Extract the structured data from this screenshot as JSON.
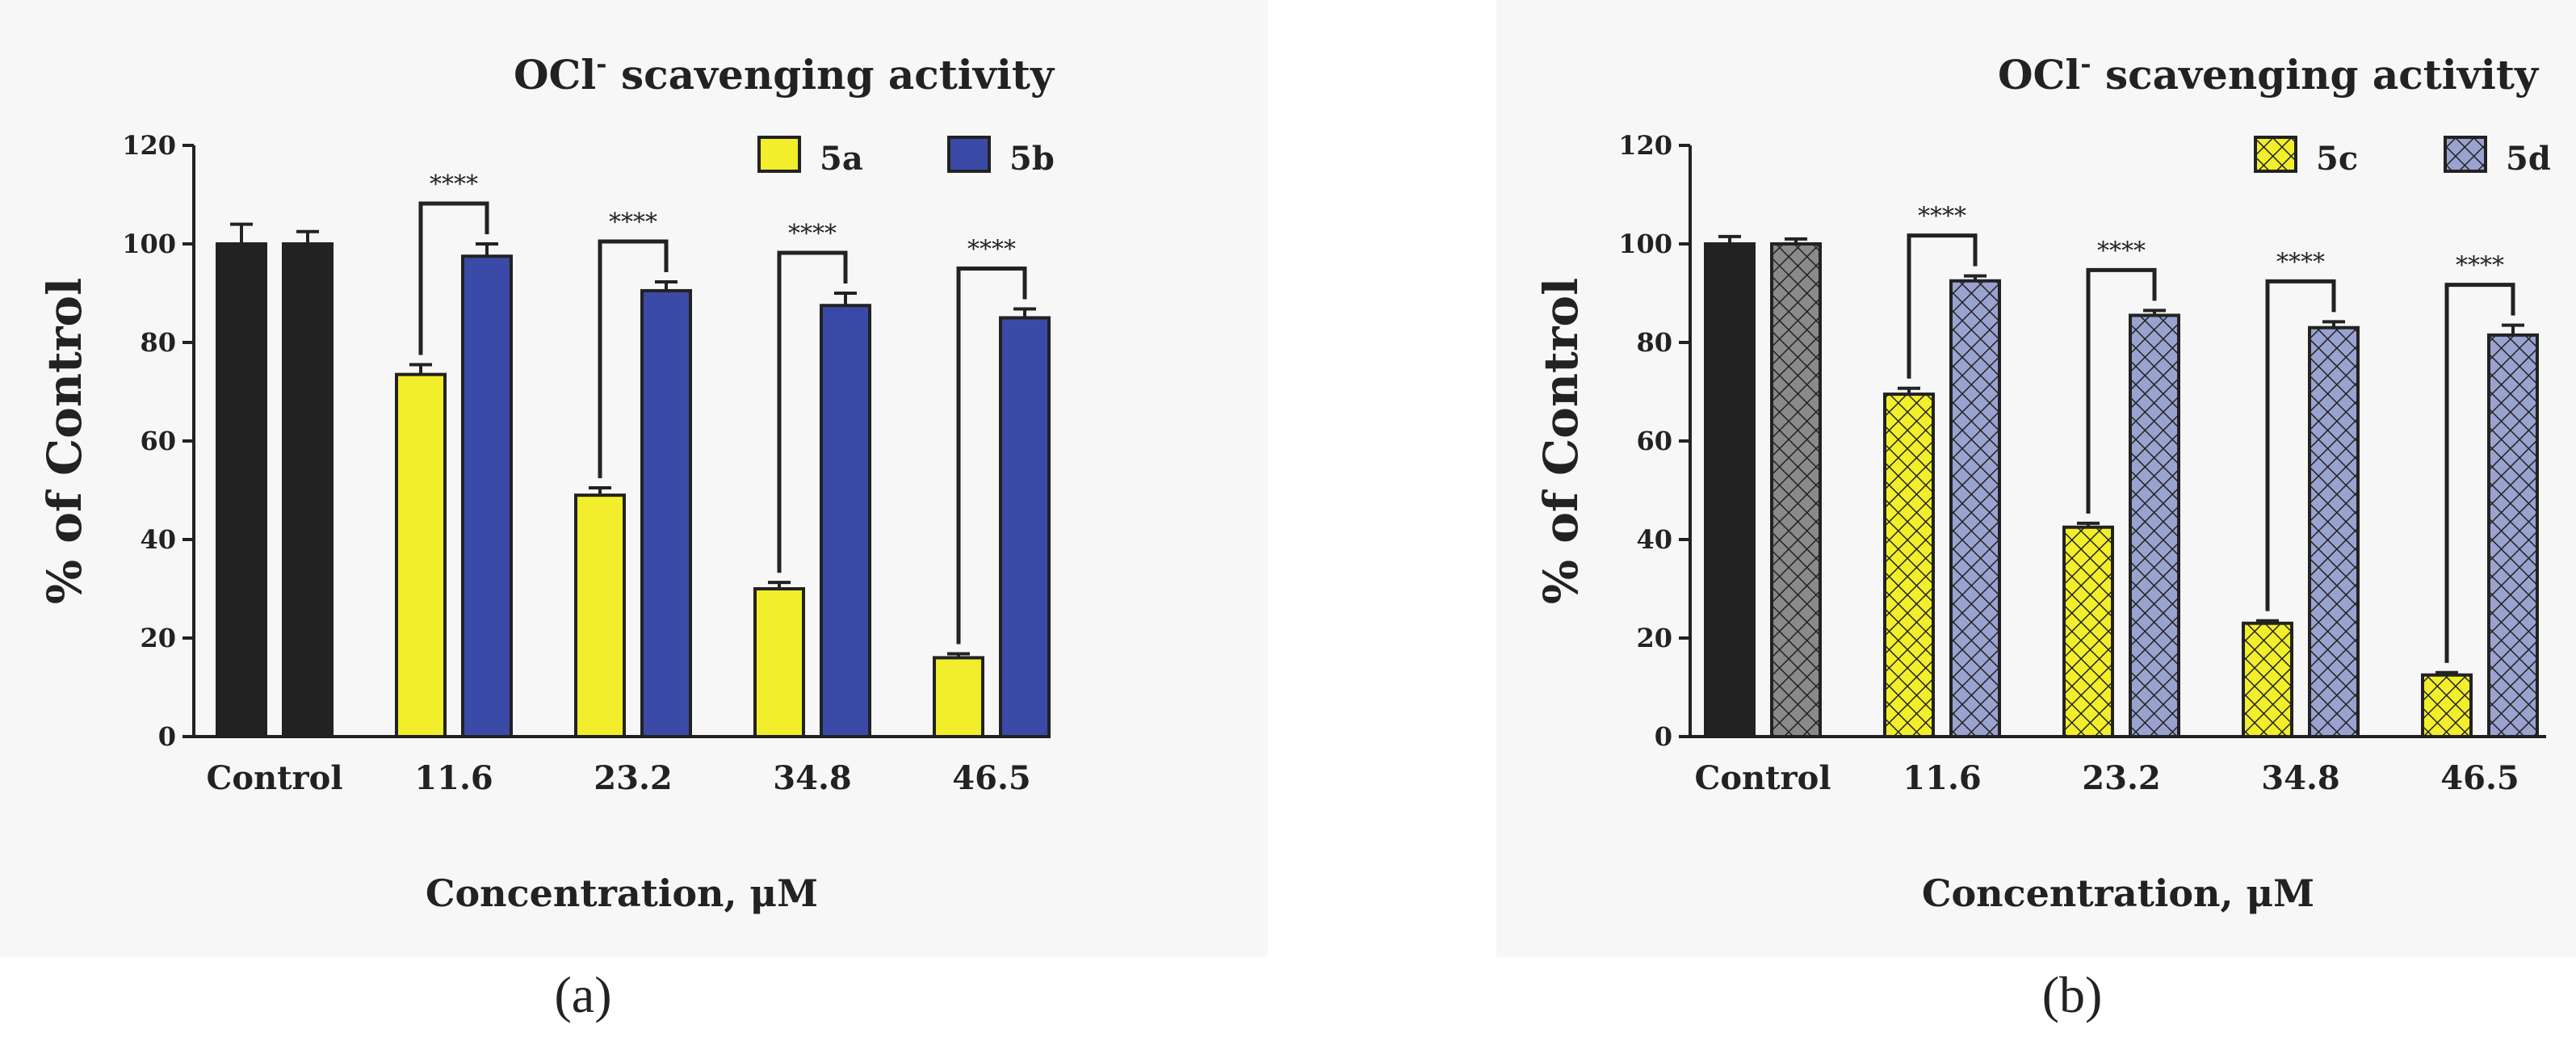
{
  "chart_data": [
    {
      "type": "bar",
      "panel_label": "(a)",
      "title": "OCl",
      "title_superscript": "-",
      "title_rest": " scavenging activity",
      "xlabel": "Concentration, μM",
      "ylabel": "% of Control",
      "ylim": [
        0,
        120
      ],
      "yticks": [
        0,
        20,
        40,
        60,
        80,
        100,
        120
      ],
      "categories": [
        "Control",
        "11.6",
        "23.2",
        "34.8",
        "46.5"
      ],
      "series": [
        {
          "name": "5a",
          "color": "#f2ee2b",
          "pattern": "solid",
          "control_color": "#222222",
          "values": [
            100,
            73.5,
            49,
            30,
            16
          ],
          "errors": [
            4,
            2,
            1.5,
            1.3,
            0.8
          ]
        },
        {
          "name": "5b",
          "color": "#3a4aa6",
          "pattern": "solid",
          "control_color": "#222222",
          "values": [
            100,
            97.5,
            90.5,
            87.5,
            85
          ],
          "errors": [
            2.5,
            2.5,
            1.8,
            2.5,
            1.8
          ]
        }
      ],
      "significance": [
        "****",
        "****",
        "****",
        "****"
      ],
      "legend": "top-right"
    },
    {
      "type": "bar",
      "panel_label": "(b)",
      "title": "OCl",
      "title_superscript": "-",
      "title_rest": " scavenging activity",
      "xlabel": "Concentration, μM",
      "ylabel": "% of Control",
      "ylim": [
        0,
        120
      ],
      "yticks": [
        0,
        20,
        40,
        60,
        80,
        100,
        120
      ],
      "categories": [
        "Control",
        "11.6",
        "23.2",
        "34.8",
        "46.5"
      ],
      "series": [
        {
          "name": "5c",
          "color": "#f2ee2b",
          "pattern": "crosshatch",
          "control_color": "#222222",
          "values": [
            100,
            69.5,
            42.5,
            23,
            12.5
          ],
          "errors": [
            1.5,
            1.2,
            0.8,
            0.5,
            0.5
          ]
        },
        {
          "name": "5d",
          "color": "#9aa2cf",
          "pattern": "crosshatch",
          "control_color": "#8a8a8a",
          "values": [
            100,
            92.5,
            85.5,
            83,
            81.5
          ],
          "errors": [
            1,
            1,
            1,
            1.2,
            2
          ]
        }
      ],
      "significance": [
        "****",
        "****",
        "****",
        "****"
      ],
      "legend": "top-right"
    }
  ]
}
